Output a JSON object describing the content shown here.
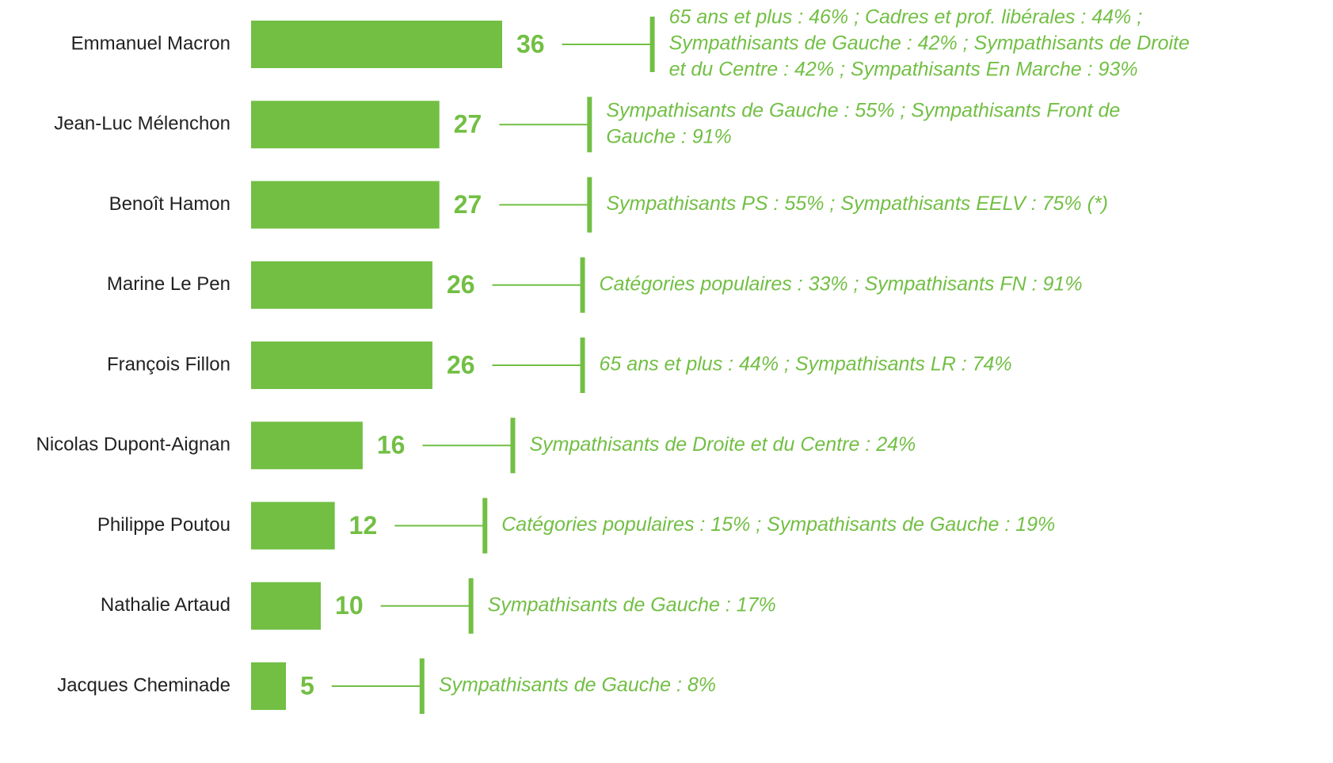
{
  "chart_data": {
    "type": "bar",
    "orientation": "horizontal",
    "color": "#72bf44",
    "categories": [
      "Emmanuel Macron",
      "Jean-Luc Mélenchon",
      "Benoît Hamon",
      "Marine Le Pen",
      "François Fillon",
      "Nicolas Dupont-Aignan",
      "Philippe Poutou",
      "Nathalie Artaud",
      "Jacques Cheminade"
    ],
    "values": [
      36,
      27,
      27,
      26,
      26,
      16,
      12,
      10,
      5
    ],
    "annotations": [
      [
        "65 ans et plus : 46% ; Cadres et prof. libérales : 44% ;",
        "Sympathisants de Gauche : 42% ; Sympathisants de Droite",
        "et du Centre : 42% ; Sympathisants En Marche : 93%"
      ],
      [
        "Sympathisants de Gauche : 55% ; Sympathisants Front de",
        "Gauche : 91%"
      ],
      [
        "Sympathisants PS : 55% ; Sympathisants EELV : 75% (*)"
      ],
      [
        "Catégories populaires : 33% ; Sympathisants FN : 91%"
      ],
      [
        "65 ans et plus : 44% ; Sympathisants LR : 74%"
      ],
      [
        "Sympathisants de Droite et du Centre : 24%"
      ],
      [
        "Catégories populaires : 15% ; Sympathisants de Gauche : 19%"
      ],
      [
        "Sympathisants de Gauche : 17%"
      ],
      [
        "Sympathisants de Gauche : 8%"
      ]
    ]
  }
}
